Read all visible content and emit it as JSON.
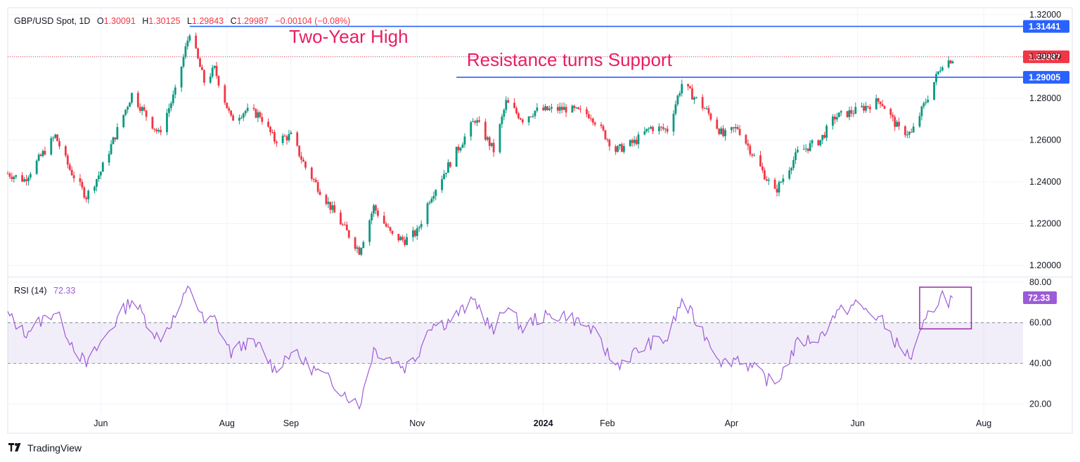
{
  "header": {
    "symbol": "GBP/USD Spot, 1D",
    "open_label": "O",
    "open": "1.30091",
    "high_label": "H",
    "high": "1.30125",
    "low_label": "L",
    "low": "1.29843",
    "close_label": "C",
    "close": "1.29987",
    "change": "−0.00104 (−0.08%)"
  },
  "brand": {
    "name": "TradingView"
  },
  "colors": {
    "up": "#089981",
    "down": "#f23645",
    "annotation": "#e91e63",
    "level_line": "#2962ff",
    "rsi_line": "#9c5bd8",
    "rsi_band": "#7e57c2",
    "grid": "#f0f3fa",
    "text": "#131722"
  },
  "chart_data": [
    {
      "type": "candlestick",
      "title": "GBP/USD Spot, 1D",
      "y_ticks": [
        "1.20000",
        "1.22000",
        "1.24000",
        "1.26000",
        "1.28000",
        "1.30000",
        "1.32000"
      ],
      "ylim": [
        1.195,
        1.323
      ],
      "x_ticks": [
        {
          "label": "Jun",
          "date": "2023-06-01",
          "bold": false
        },
        {
          "label": "Aug",
          "date": "2023-08-01",
          "bold": false
        },
        {
          "label": "Sep",
          "date": "2023-09-01",
          "bold": false
        },
        {
          "label": "Nov",
          "date": "2023-11-01",
          "bold": false
        },
        {
          "label": "2024",
          "date": "2024-01-01",
          "bold": true
        },
        {
          "label": "Feb",
          "date": "2024-02-01",
          "bold": false
        },
        {
          "label": "Apr",
          "date": "2024-04-01",
          "bold": false
        },
        {
          "label": "Jun",
          "date": "2024-06-01",
          "bold": false
        },
        {
          "label": "Aug",
          "date": "2024-08-01",
          "bold": false
        }
      ],
      "x_range": [
        "2023-04-17",
        "2024-08-20"
      ],
      "price_anchors": [
        [
          "2023-04-17",
          1.244
        ],
        [
          "2023-04-25",
          1.241
        ],
        [
          "2023-05-10",
          1.262
        ],
        [
          "2023-05-17",
          1.246
        ],
        [
          "2023-05-25",
          1.233
        ],
        [
          "2023-06-01",
          1.245
        ],
        [
          "2023-06-16",
          1.282
        ],
        [
          "2023-06-29",
          1.263
        ],
        [
          "2023-07-07",
          1.283
        ],
        [
          "2023-07-14",
          1.312
        ],
        [
          "2023-07-21",
          1.288
        ],
        [
          "2023-07-26",
          1.294
        ],
        [
          "2023-08-03",
          1.27
        ],
        [
          "2023-08-10",
          1.274
        ],
        [
          "2023-08-17",
          1.272
        ],
        [
          "2023-08-24",
          1.26
        ],
        [
          "2023-09-01",
          1.262
        ],
        [
          "2023-09-08",
          1.247
        ],
        [
          "2023-09-22",
          1.225
        ],
        [
          "2023-10-04",
          1.207
        ],
        [
          "2023-10-11",
          1.228
        ],
        [
          "2023-10-20",
          1.214
        ],
        [
          "2023-10-26",
          1.212
        ],
        [
          "2023-11-01",
          1.216
        ],
        [
          "2023-11-07",
          1.232
        ],
        [
          "2023-11-15",
          1.246
        ],
        [
          "2023-11-29",
          1.27
        ],
        [
          "2023-12-08",
          1.255
        ],
        [
          "2023-12-14",
          1.278
        ],
        [
          "2023-12-22",
          1.27
        ],
        [
          "2023-12-28",
          1.274
        ],
        [
          "2024-01-12",
          1.275
        ],
        [
          "2024-01-24",
          1.272
        ],
        [
          "2024-02-05",
          1.255
        ],
        [
          "2024-02-14",
          1.259
        ],
        [
          "2024-02-22",
          1.266
        ],
        [
          "2024-03-01",
          1.265
        ],
        [
          "2024-03-08",
          1.287
        ],
        [
          "2024-03-20",
          1.274
        ],
        [
          "2024-03-28",
          1.262
        ],
        [
          "2024-04-04",
          1.266
        ],
        [
          "2024-04-16",
          1.245
        ],
        [
          "2024-04-22",
          1.235
        ],
        [
          "2024-05-03",
          1.254
        ],
        [
          "2024-05-14",
          1.26
        ],
        [
          "2024-05-21",
          1.271
        ],
        [
          "2024-05-31",
          1.274
        ],
        [
          "2024-06-12",
          1.279
        ],
        [
          "2024-06-21",
          1.265
        ],
        [
          "2024-06-27",
          1.263
        ],
        [
          "2024-07-05",
          1.281
        ],
        [
          "2024-07-12",
          1.297
        ],
        [
          "2024-07-15",
          1.298
        ],
        [
          "2024-07-17",
          1.299
        ]
      ],
      "levels": [
        {
          "label": "1.31441",
          "value": 1.31441,
          "from_date": "2023-07-14",
          "style": "solid"
        },
        {
          "label": "1.29005",
          "value": 1.29005,
          "from_date": "2023-11-20",
          "style": "solid"
        },
        {
          "label": "1.29987",
          "value": 1.29987,
          "from_date": "2023-04-17",
          "style": "dotted"
        }
      ],
      "annotations": [
        {
          "text": "Two-Year High",
          "date": "2023-08-31",
          "value": 1.3065
        },
        {
          "text": "Resistance turns Support",
          "date": "2023-11-25",
          "value": 1.2954
        }
      ]
    },
    {
      "type": "line",
      "title": "RSI (14)",
      "current": "72.33",
      "y_ticks": [
        "20.00",
        "40.00",
        "60.00",
        "80.00"
      ],
      "ylim": [
        15,
        82
      ],
      "band": [
        40,
        60
      ],
      "rsi_anchors": [
        [
          "2023-04-17",
          64
        ],
        [
          "2023-04-25",
          55
        ],
        [
          "2023-05-10",
          66
        ],
        [
          "2023-05-17",
          52
        ],
        [
          "2023-05-25",
          39
        ],
        [
          "2023-06-01",
          50
        ],
        [
          "2023-06-16",
          72
        ],
        [
          "2023-06-29",
          52
        ],
        [
          "2023-07-07",
          63
        ],
        [
          "2023-07-14",
          78
        ],
        [
          "2023-07-21",
          60
        ],
        [
          "2023-07-26",
          62
        ],
        [
          "2023-08-03",
          45
        ],
        [
          "2023-08-10",
          50
        ],
        [
          "2023-08-17",
          48
        ],
        [
          "2023-08-24",
          37
        ],
        [
          "2023-09-01",
          46
        ],
        [
          "2023-09-08",
          40
        ],
        [
          "2023-09-22",
          30
        ],
        [
          "2023-10-04",
          19
        ],
        [
          "2023-10-11",
          47
        ],
        [
          "2023-10-20",
          42
        ],
        [
          "2023-10-26",
          38
        ],
        [
          "2023-11-01",
          44
        ],
        [
          "2023-11-07",
          59
        ],
        [
          "2023-11-15",
          60
        ],
        [
          "2023-11-29",
          71
        ],
        [
          "2023-12-08",
          55
        ],
        [
          "2023-12-14",
          69
        ],
        [
          "2023-12-22",
          57
        ],
        [
          "2023-12-28",
          62
        ],
        [
          "2024-01-12",
          64
        ],
        [
          "2024-01-24",
          57
        ],
        [
          "2024-02-05",
          39
        ],
        [
          "2024-02-14",
          45
        ],
        [
          "2024-02-22",
          50
        ],
        [
          "2024-03-01",
          52
        ],
        [
          "2024-03-08",
          71
        ],
        [
          "2024-03-20",
          53
        ],
        [
          "2024-03-28",
          40
        ],
        [
          "2024-04-04",
          43
        ],
        [
          "2024-04-16",
          34
        ],
        [
          "2024-04-22",
          29
        ],
        [
          "2024-05-03",
          50
        ],
        [
          "2024-05-14",
          53
        ],
        [
          "2024-05-21",
          64
        ],
        [
          "2024-05-31",
          69
        ],
        [
          "2024-06-12",
          62
        ],
        [
          "2024-06-21",
          48
        ],
        [
          "2024-06-27",
          43
        ],
        [
          "2024-07-05",
          63
        ],
        [
          "2024-07-12",
          74
        ],
        [
          "2024-07-15",
          71
        ],
        [
          "2024-07-17",
          72.33
        ]
      ],
      "highlight": {
        "from_date": "2024-07-01",
        "to_date": "2024-07-26",
        "ylow": 57,
        "yhigh": 77.5
      }
    }
  ]
}
